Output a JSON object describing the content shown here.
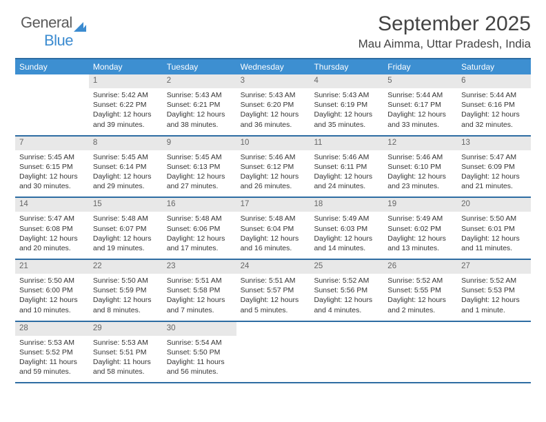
{
  "logo": {
    "text1": "General",
    "text2": "Blue"
  },
  "header": {
    "title": "September 2025",
    "subtitle": "Mau Aimma, Uttar Pradesh, India"
  },
  "styling": {
    "header_bg": "#3d8fd1",
    "rule_color": "#2d6ca2",
    "daynum_bg": "#e8e8e8",
    "page_bg": "#ffffff",
    "title_fontsize": 30,
    "subtitle_fontsize": 17,
    "dayhead_fontsize": 12,
    "body_fontsize": 10.5
  },
  "dayHeaders": [
    "Sunday",
    "Monday",
    "Tuesday",
    "Wednesday",
    "Thursday",
    "Friday",
    "Saturday"
  ],
  "weeks": [
    [
      null,
      {
        "n": "1",
        "sr": "Sunrise: 5:42 AM",
        "ss": "Sunset: 6:22 PM",
        "d1": "Daylight: 12 hours",
        "d2": "and 39 minutes."
      },
      {
        "n": "2",
        "sr": "Sunrise: 5:43 AM",
        "ss": "Sunset: 6:21 PM",
        "d1": "Daylight: 12 hours",
        "d2": "and 38 minutes."
      },
      {
        "n": "3",
        "sr": "Sunrise: 5:43 AM",
        "ss": "Sunset: 6:20 PM",
        "d1": "Daylight: 12 hours",
        "d2": "and 36 minutes."
      },
      {
        "n": "4",
        "sr": "Sunrise: 5:43 AM",
        "ss": "Sunset: 6:19 PM",
        "d1": "Daylight: 12 hours",
        "d2": "and 35 minutes."
      },
      {
        "n": "5",
        "sr": "Sunrise: 5:44 AM",
        "ss": "Sunset: 6:17 PM",
        "d1": "Daylight: 12 hours",
        "d2": "and 33 minutes."
      },
      {
        "n": "6",
        "sr": "Sunrise: 5:44 AM",
        "ss": "Sunset: 6:16 PM",
        "d1": "Daylight: 12 hours",
        "d2": "and 32 minutes."
      }
    ],
    [
      {
        "n": "7",
        "sr": "Sunrise: 5:45 AM",
        "ss": "Sunset: 6:15 PM",
        "d1": "Daylight: 12 hours",
        "d2": "and 30 minutes."
      },
      {
        "n": "8",
        "sr": "Sunrise: 5:45 AM",
        "ss": "Sunset: 6:14 PM",
        "d1": "Daylight: 12 hours",
        "d2": "and 29 minutes."
      },
      {
        "n": "9",
        "sr": "Sunrise: 5:45 AM",
        "ss": "Sunset: 6:13 PM",
        "d1": "Daylight: 12 hours",
        "d2": "and 27 minutes."
      },
      {
        "n": "10",
        "sr": "Sunrise: 5:46 AM",
        "ss": "Sunset: 6:12 PM",
        "d1": "Daylight: 12 hours",
        "d2": "and 26 minutes."
      },
      {
        "n": "11",
        "sr": "Sunrise: 5:46 AM",
        "ss": "Sunset: 6:11 PM",
        "d1": "Daylight: 12 hours",
        "d2": "and 24 minutes."
      },
      {
        "n": "12",
        "sr": "Sunrise: 5:46 AM",
        "ss": "Sunset: 6:10 PM",
        "d1": "Daylight: 12 hours",
        "d2": "and 23 minutes."
      },
      {
        "n": "13",
        "sr": "Sunrise: 5:47 AM",
        "ss": "Sunset: 6:09 PM",
        "d1": "Daylight: 12 hours",
        "d2": "and 21 minutes."
      }
    ],
    [
      {
        "n": "14",
        "sr": "Sunrise: 5:47 AM",
        "ss": "Sunset: 6:08 PM",
        "d1": "Daylight: 12 hours",
        "d2": "and 20 minutes."
      },
      {
        "n": "15",
        "sr": "Sunrise: 5:48 AM",
        "ss": "Sunset: 6:07 PM",
        "d1": "Daylight: 12 hours",
        "d2": "and 19 minutes."
      },
      {
        "n": "16",
        "sr": "Sunrise: 5:48 AM",
        "ss": "Sunset: 6:06 PM",
        "d1": "Daylight: 12 hours",
        "d2": "and 17 minutes."
      },
      {
        "n": "17",
        "sr": "Sunrise: 5:48 AM",
        "ss": "Sunset: 6:04 PM",
        "d1": "Daylight: 12 hours",
        "d2": "and 16 minutes."
      },
      {
        "n": "18",
        "sr": "Sunrise: 5:49 AM",
        "ss": "Sunset: 6:03 PM",
        "d1": "Daylight: 12 hours",
        "d2": "and 14 minutes."
      },
      {
        "n": "19",
        "sr": "Sunrise: 5:49 AM",
        "ss": "Sunset: 6:02 PM",
        "d1": "Daylight: 12 hours",
        "d2": "and 13 minutes."
      },
      {
        "n": "20",
        "sr": "Sunrise: 5:50 AM",
        "ss": "Sunset: 6:01 PM",
        "d1": "Daylight: 12 hours",
        "d2": "and 11 minutes."
      }
    ],
    [
      {
        "n": "21",
        "sr": "Sunrise: 5:50 AM",
        "ss": "Sunset: 6:00 PM",
        "d1": "Daylight: 12 hours",
        "d2": "and 10 minutes."
      },
      {
        "n": "22",
        "sr": "Sunrise: 5:50 AM",
        "ss": "Sunset: 5:59 PM",
        "d1": "Daylight: 12 hours",
        "d2": "and 8 minutes."
      },
      {
        "n": "23",
        "sr": "Sunrise: 5:51 AM",
        "ss": "Sunset: 5:58 PM",
        "d1": "Daylight: 12 hours",
        "d2": "and 7 minutes."
      },
      {
        "n": "24",
        "sr": "Sunrise: 5:51 AM",
        "ss": "Sunset: 5:57 PM",
        "d1": "Daylight: 12 hours",
        "d2": "and 5 minutes."
      },
      {
        "n": "25",
        "sr": "Sunrise: 5:52 AM",
        "ss": "Sunset: 5:56 PM",
        "d1": "Daylight: 12 hours",
        "d2": "and 4 minutes."
      },
      {
        "n": "26",
        "sr": "Sunrise: 5:52 AM",
        "ss": "Sunset: 5:55 PM",
        "d1": "Daylight: 12 hours",
        "d2": "and 2 minutes."
      },
      {
        "n": "27",
        "sr": "Sunrise: 5:52 AM",
        "ss": "Sunset: 5:53 PM",
        "d1": "Daylight: 12 hours",
        "d2": "and 1 minute."
      }
    ],
    [
      {
        "n": "28",
        "sr": "Sunrise: 5:53 AM",
        "ss": "Sunset: 5:52 PM",
        "d1": "Daylight: 11 hours",
        "d2": "and 59 minutes."
      },
      {
        "n": "29",
        "sr": "Sunrise: 5:53 AM",
        "ss": "Sunset: 5:51 PM",
        "d1": "Daylight: 11 hours",
        "d2": "and 58 minutes."
      },
      {
        "n": "30",
        "sr": "Sunrise: 5:54 AM",
        "ss": "Sunset: 5:50 PM",
        "d1": "Daylight: 11 hours",
        "d2": "and 56 minutes."
      },
      null,
      null,
      null,
      null
    ]
  ]
}
